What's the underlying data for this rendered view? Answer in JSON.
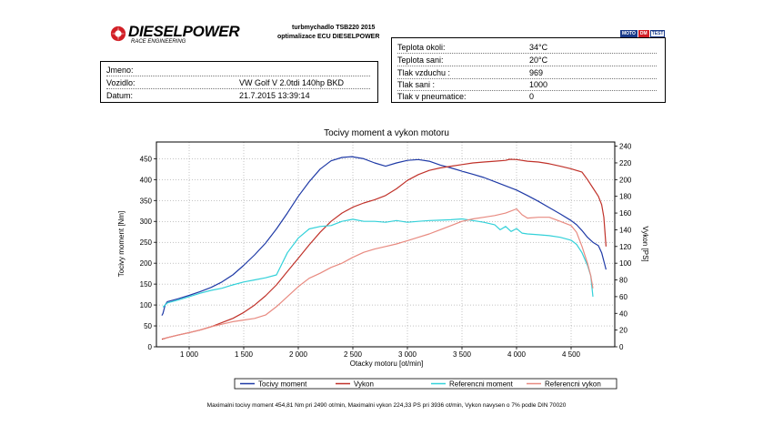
{
  "header": {
    "brand": "DIESELPOWER",
    "brand_sub": "RACE ENGINEERING",
    "line1": "turbmychadlo TSB220 2015",
    "line2": "optimalizace ECU DIESELPOWER",
    "badge": [
      "MOTO",
      "DM",
      "TEST"
    ]
  },
  "vehicle": {
    "name_label": "Jmeno:",
    "name_value": "",
    "car_label": "Vozidlo:",
    "car_value": "VW Golf V 2.0tdi 140hp BKD",
    "date_label": "Datum:",
    "date_value": "21.7.2015 13:39:14"
  },
  "conditions": [
    {
      "label": "Teplota okoli:",
      "value": "34°C"
    },
    {
      "label": "Teplota sani:",
      "value": "20°C"
    },
    {
      "label": "Tlak vzduchu :",
      "value": "969"
    },
    {
      "label": "Tlak sani :",
      "value": "1000"
    },
    {
      "label": "Tlak v pneumatice:",
      "value": "0"
    }
  ],
  "chart_data": {
    "type": "line",
    "title": "Tocivy moment a vykon motoru",
    "xlabel": "Otacky motoru [ot/min]",
    "ylabel_left": "Tocivy moment [Nm]",
    "ylabel_right": "Vykon [PS]",
    "xlim": [
      700,
      4900
    ],
    "ylim_left": [
      0,
      490
    ],
    "ylim_right": [
      0,
      245
    ],
    "x_ticks": [
      1000,
      1500,
      2000,
      2500,
      3000,
      3500,
      4000,
      4500
    ],
    "x_tick_labels": [
      "1 000",
      "1 500",
      "2 000",
      "2 500",
      "3 000",
      "3 500",
      "4 000",
      "4 500"
    ],
    "y_ticks_left": [
      0,
      50,
      100,
      150,
      200,
      250,
      300,
      350,
      400,
      450
    ],
    "y_ticks_right": [
      0,
      20,
      40,
      60,
      80,
      100,
      120,
      140,
      160,
      180,
      200,
      220,
      240
    ],
    "grid": true,
    "legend_position": "bottom",
    "series": [
      {
        "name": "Tocivy moment",
        "axis": "left",
        "color": "#1f3aa6",
        "x": [
          750,
          760,
          780,
          800,
          900,
          1000,
          1100,
          1200,
          1300,
          1400,
          1500,
          1600,
          1700,
          1800,
          1900,
          2000,
          2100,
          2200,
          2300,
          2400,
          2490,
          2600,
          2700,
          2800,
          2900,
          3000,
          3100,
          3200,
          3300,
          3400,
          3500,
          3600,
          3700,
          3800,
          3900,
          4000,
          4100,
          4200,
          4300,
          4400,
          4500,
          4550,
          4600,
          4650,
          4700,
          4750,
          4780,
          4800,
          4820
        ],
        "y": [
          75,
          80,
          100,
          108,
          115,
          123,
          132,
          142,
          155,
          172,
          195,
          220,
          248,
          282,
          320,
          360,
          395,
          425,
          445,
          453,
          455,
          450,
          440,
          432,
          440,
          446,
          448,
          444,
          435,
          428,
          420,
          413,
          405,
          395,
          385,
          375,
          362,
          348,
          333,
          318,
          302,
          292,
          278,
          262,
          250,
          242,
          225,
          205,
          185
        ]
      },
      {
        "name": "Vykon",
        "axis": "right",
        "color": "#c0322a",
        "x": [
          750,
          800,
          900,
          1000,
          1100,
          1200,
          1300,
          1400,
          1500,
          1600,
          1700,
          1800,
          1900,
          2000,
          2100,
          2200,
          2300,
          2400,
          2500,
          2600,
          2700,
          2800,
          2900,
          3000,
          3100,
          3200,
          3300,
          3400,
          3500,
          3600,
          3700,
          3800,
          3900,
          3936,
          4000,
          4100,
          4200,
          4300,
          4400,
          4500,
          4600,
          4650,
          4700,
          4750,
          4780,
          4800,
          4820
        ],
        "y": [
          9,
          11,
          14,
          17,
          20,
          24,
          29,
          34,
          41,
          50,
          61,
          74,
          90,
          106,
          122,
          137,
          150,
          160,
          167,
          172,
          176,
          181,
          189,
          199,
          206,
          211,
          214,
          216,
          218,
          220,
          221,
          222,
          223,
          224.33,
          224,
          222,
          221,
          219,
          216,
          213,
          209,
          200,
          190,
          180,
          170,
          155,
          120
        ]
      },
      {
        "name": "Referencni moment",
        "axis": "left",
        "color": "#33d1d9",
        "x": [
          760,
          780,
          800,
          900,
          1000,
          1100,
          1200,
          1300,
          1400,
          1500,
          1600,
          1700,
          1800,
          1900,
          2000,
          2100,
          2200,
          2300,
          2400,
          2500,
          2600,
          2700,
          2800,
          2900,
          3000,
          3100,
          3200,
          3300,
          3400,
          3500,
          3600,
          3700,
          3800,
          3850,
          3900,
          3950,
          4000,
          4050,
          4100,
          4200,
          4300,
          4400,
          4500,
          4550,
          4600,
          4650,
          4680,
          4700
        ],
        "y": [
          95,
          100,
          105,
          112,
          120,
          128,
          135,
          140,
          148,
          155,
          160,
          165,
          172,
          225,
          260,
          282,
          288,
          290,
          300,
          305,
          300,
          300,
          298,
          302,
          298,
          300,
          302,
          303,
          304,
          306,
          302,
          298,
          292,
          280,
          288,
          276,
          283,
          272,
          270,
          268,
          266,
          262,
          255,
          245,
          225,
          195,
          170,
          120
        ]
      },
      {
        "name": "Referencni vykon",
        "axis": "right",
        "color": "#e88a80",
        "x": [
          760,
          800,
          900,
          1000,
          1100,
          1200,
          1300,
          1400,
          1500,
          1600,
          1700,
          1800,
          1900,
          2000,
          2100,
          2200,
          2300,
          2400,
          2500,
          2600,
          2700,
          2800,
          2900,
          3000,
          3100,
          3200,
          3300,
          3400,
          3500,
          3600,
          3700,
          3800,
          3900,
          4000,
          4050,
          4100,
          4200,
          4300,
          4400,
          4500,
          4550,
          4600,
          4650,
          4680,
          4700
        ],
        "y": [
          9,
          11,
          14,
          17,
          20,
          24,
          27,
          30,
          32,
          34,
          38,
          48,
          60,
          72,
          82,
          88,
          95,
          100,
          107,
          113,
          117,
          120,
          123,
          127,
          131,
          135,
          140,
          145,
          150,
          153,
          155,
          157,
          160,
          165,
          158,
          154,
          155,
          155,
          150,
          145,
          137,
          120,
          100,
          85,
          70
        ]
      }
    ]
  },
  "footer": "Maximalni tocivy moment 454,81 Nm pri 2490 ot/min,  Maximalni vykon 224,33 PS pri 3936 ot/min,  Vykon navysen o 7% podle DIN 70020"
}
